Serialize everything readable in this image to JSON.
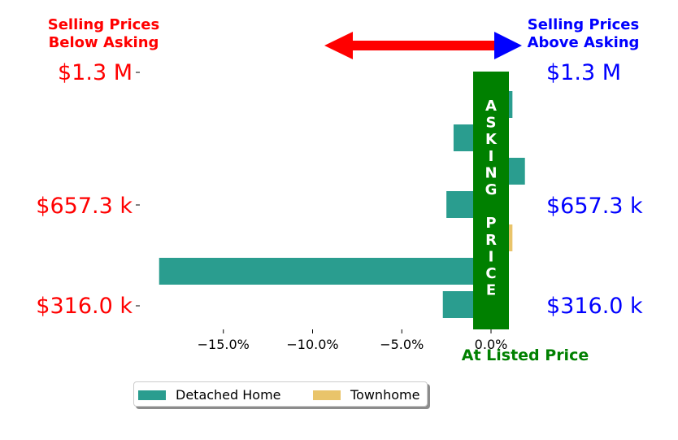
{
  "headers": {
    "left": "Selling Prices\nBelow Asking",
    "right": "Selling Prices\nAbove Asking"
  },
  "price_labels": {
    "left": [
      "$1.3 M",
      "$657.3 k",
      "$316.0 k"
    ],
    "right": [
      "$1.3 M",
      "$657.3 k",
      "$316.0 k"
    ]
  },
  "asking_price_band": "ASKING PRICE",
  "at_listed_label": "At Listed Price",
  "colors": {
    "below": "#ff0000",
    "above": "#0000ff",
    "asking": "#008000",
    "detached": "#2a9d8f",
    "townhome": "#e9c46a"
  },
  "chart_data": {
    "type": "bar",
    "orientation": "horizontal",
    "x_ticks": [
      "−15.0%",
      "−10.0%",
      "−5.0%",
      "0.0%"
    ],
    "xlim": [
      -19,
      1.2
    ],
    "series": [
      {
        "name": "Detached Home",
        "values": [
          {
            "row": 1,
            "value": 1.2
          },
          {
            "row": 2,
            "value": -2.1
          },
          {
            "row": 3,
            "value": 1.9
          },
          {
            "row": 4,
            "value": -2.5
          },
          {
            "row": 6,
            "value": -18.6
          },
          {
            "row": 7,
            "value": -2.7
          }
        ]
      },
      {
        "name": "Townhome",
        "values": [
          {
            "row": 5,
            "value": 1.2
          }
        ]
      }
    ],
    "legend": "bottom"
  }
}
